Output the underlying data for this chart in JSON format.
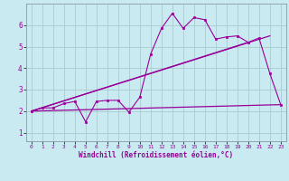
{
  "title": "",
  "xlabel": "Windchill (Refroidissement éolien,°C)",
  "background_color": "#c8eaf0",
  "grid_color": "#aacccc",
  "line_color": "#990099",
  "spine_color": "#8899aa",
  "xlim": [
    -0.5,
    23.5
  ],
  "ylim": [
    0.6,
    7.0
  ],
  "xticks": [
    0,
    1,
    2,
    3,
    4,
    5,
    6,
    7,
    8,
    9,
    10,
    11,
    12,
    13,
    14,
    15,
    16,
    17,
    18,
    19,
    20,
    21,
    22,
    23
  ],
  "yticks": [
    1,
    2,
    3,
    4,
    5,
    6
  ],
  "series1_x": [
    0,
    1,
    2,
    3,
    4,
    5,
    6,
    7,
    8,
    9,
    10,
    11,
    12,
    13,
    14,
    15,
    16,
    17,
    18,
    19,
    20,
    21,
    22,
    23
  ],
  "series1_y": [
    2.0,
    2.15,
    2.15,
    2.35,
    2.45,
    1.5,
    2.45,
    2.5,
    2.5,
    1.95,
    2.65,
    4.65,
    5.85,
    6.55,
    5.85,
    6.35,
    6.25,
    5.35,
    5.45,
    5.5,
    5.2,
    5.4,
    3.75,
    2.3
  ],
  "series2_x": [
    0,
    23
  ],
  "series2_y": [
    2.0,
    2.3
  ],
  "series3_x": [
    0,
    22
  ],
  "series3_y": [
    2.0,
    5.5
  ],
  "series4_x": [
    0,
    20
  ],
  "series4_y": [
    2.0,
    5.2
  ]
}
